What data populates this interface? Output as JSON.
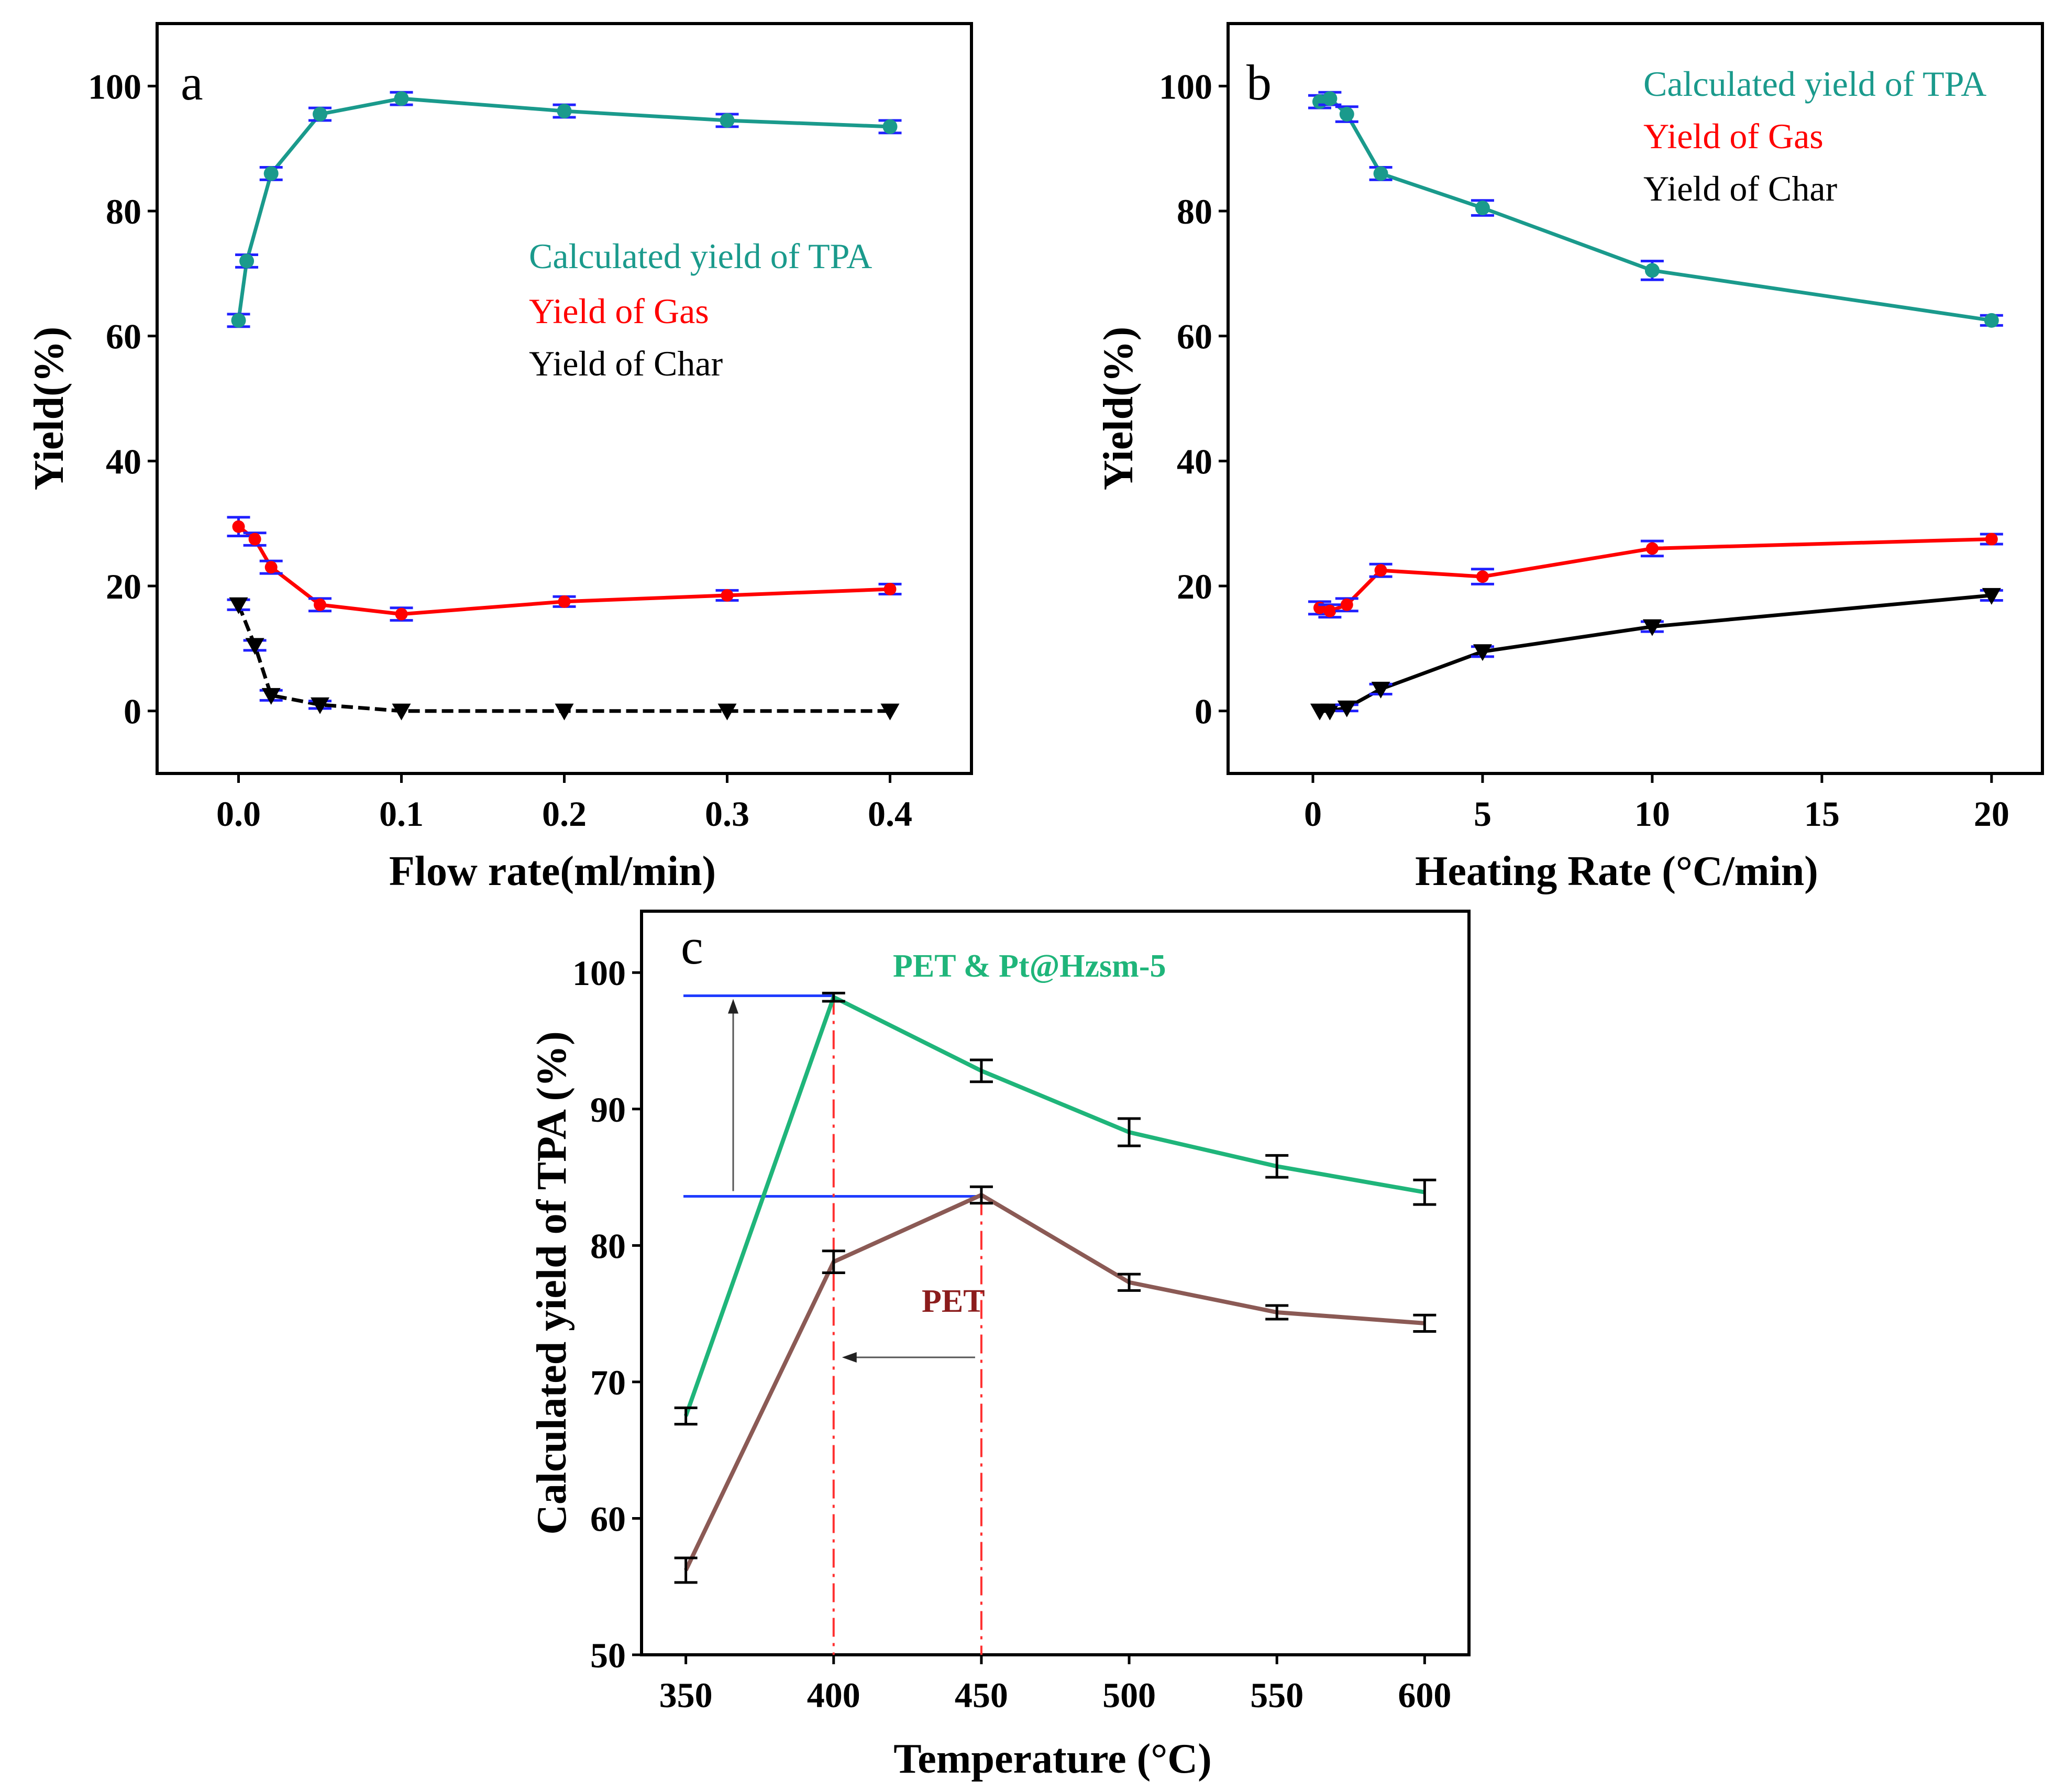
{
  "chart_data": [
    {
      "panel": "a",
      "type": "line",
      "xlabel": "Flow rate(ml/min)",
      "ylabel": "Yield(%)",
      "xlim": [
        -0.05,
        0.45
      ],
      "ylim": [
        -10,
        110
      ],
      "xticks": [
        0.0,
        0.1,
        0.2,
        0.3,
        0.4
      ],
      "xtick_labels": [
        "0.0",
        "0.1",
        "0.2",
        "0.3",
        "0.4"
      ],
      "yticks": [
        0,
        20,
        40,
        60,
        80,
        100
      ],
      "ytick_labels": [
        "0",
        "20",
        "40",
        "60",
        "80",
        "100"
      ],
      "legend": [
        "Calculated yield of TPA",
        "Yield of Gas",
        "Yield of Char"
      ],
      "legend_position": "center-right",
      "series": [
        {
          "name": "Calculated yield of TPA",
          "color": "#1a9a8c",
          "x": [
            0.0,
            0.005,
            0.02,
            0.05,
            0.1,
            0.2,
            0.3,
            0.4
          ],
          "values": [
            62.5,
            72,
            86,
            95.5,
            98,
            96,
            94.5,
            93.5
          ],
          "err": [
            1,
            1,
            1,
            1,
            1,
            1,
            1,
            1
          ]
        },
        {
          "name": "Yield of Gas",
          "color": "#ff0000",
          "x": [
            0.0,
            0.01,
            0.02,
            0.05,
            0.1,
            0.2,
            0.3,
            0.4
          ],
          "values": [
            29.5,
            27.5,
            23,
            17,
            15.5,
            17.5,
            18.5,
            19.5
          ],
          "err": [
            1.5,
            1,
            1,
            1,
            1,
            0.8,
            0.8,
            0.8
          ]
        },
        {
          "name": "Yield of Char",
          "color": "#000000",
          "x": [
            0.0,
            0.01,
            0.02,
            0.05,
            0.1,
            0.2,
            0.3,
            0.4
          ],
          "values": [
            17,
            10.5,
            2.5,
            1,
            0,
            0,
            0,
            0
          ],
          "err": [
            0.8,
            0.8,
            0.8,
            0.6,
            0,
            0,
            0,
            0
          ]
        }
      ]
    },
    {
      "panel": "b",
      "type": "line",
      "xlabel": "Heating Rate (°C/min)",
      "ylabel": "Yield(%)",
      "xlim": [
        -2.5,
        21.5
      ],
      "ylim": [
        -10,
        110
      ],
      "xticks": [
        0,
        5,
        10,
        15,
        20
      ],
      "xtick_labels": [
        "0",
        "5",
        "10",
        "15",
        "20"
      ],
      "yticks": [
        0,
        20,
        40,
        60,
        80,
        100
      ],
      "ytick_labels": [
        "0",
        "20",
        "40",
        "60",
        "80",
        "100"
      ],
      "legend": [
        "Calculated yield of TPA",
        "Yield of Gas",
        "Yield of Char"
      ],
      "legend_position": "top-right",
      "series": [
        {
          "name": "Calculated yield of TPA",
          "color": "#1a9a8c",
          "x": [
            0.2,
            0.5,
            1,
            2,
            5,
            10,
            20
          ],
          "values": [
            97.5,
            98,
            95.5,
            86,
            80.5,
            70.5,
            62.5
          ],
          "err": [
            1,
            1,
            1.2,
            1,
            1.2,
            1.5,
            0.8
          ]
        },
        {
          "name": "Yield of Gas",
          "color": "#ff0000",
          "x": [
            0.2,
            0.5,
            1,
            2,
            5,
            10,
            20
          ],
          "values": [
            16.5,
            16,
            17,
            22.5,
            21.5,
            26,
            27.5
          ],
          "err": [
            1,
            1,
            1,
            1,
            1.2,
            1.2,
            0.8
          ]
        },
        {
          "name": "Yield of Char",
          "color": "#000000",
          "x": [
            0.2,
            0.5,
            1,
            2,
            5,
            10,
            20
          ],
          "values": [
            0,
            0,
            0.5,
            3.5,
            9.5,
            13.5,
            18.5
          ],
          "err": [
            0,
            0,
            0.5,
            0.8,
            0.8,
            0.8,
            0.8
          ]
        }
      ]
    },
    {
      "panel": "c",
      "type": "line",
      "xlabel": "Temperature (°C)",
      "ylabel": "Calculated yield of TPA (%)",
      "xlim": [
        335,
        615
      ],
      "ylim": [
        50,
        104.5
      ],
      "xticks": [
        350,
        400,
        450,
        500,
        550,
        600
      ],
      "xtick_labels": [
        "350",
        "400",
        "450",
        "500",
        "550",
        "600"
      ],
      "yticks": [
        50,
        60,
        70,
        80,
        90,
        100
      ],
      "ytick_labels": [
        "50",
        "60",
        "70",
        "80",
        "90",
        "100"
      ],
      "annotations": [
        "PET  &  Pt@Hzsm-5",
        "PET"
      ],
      "series": [
        {
          "name": "PET  &  Pt@Hzsm-5",
          "color": "#1fb57a",
          "x": [
            350,
            400,
            450,
            500,
            550,
            600
          ],
          "values": [
            67.5,
            98.2,
            92.8,
            88.3,
            85.8,
            83.9
          ],
          "err": [
            0.6,
            0.3,
            0.8,
            1,
            0.8,
            0.9
          ]
        },
        {
          "name": "PET",
          "color": "#8b5a55",
          "x": [
            350,
            400,
            450,
            500,
            550,
            600
          ],
          "values": [
            56.2,
            78.8,
            83.7,
            77.3,
            75.1,
            74.3
          ],
          "err": [
            0.9,
            0.8,
            0.6,
            0.6,
            0.5,
            0.6
          ]
        }
      ],
      "reference_lines": {
        "h": [
          98.3,
          83.6
        ],
        "v": [
          400,
          450
        ]
      }
    }
  ]
}
